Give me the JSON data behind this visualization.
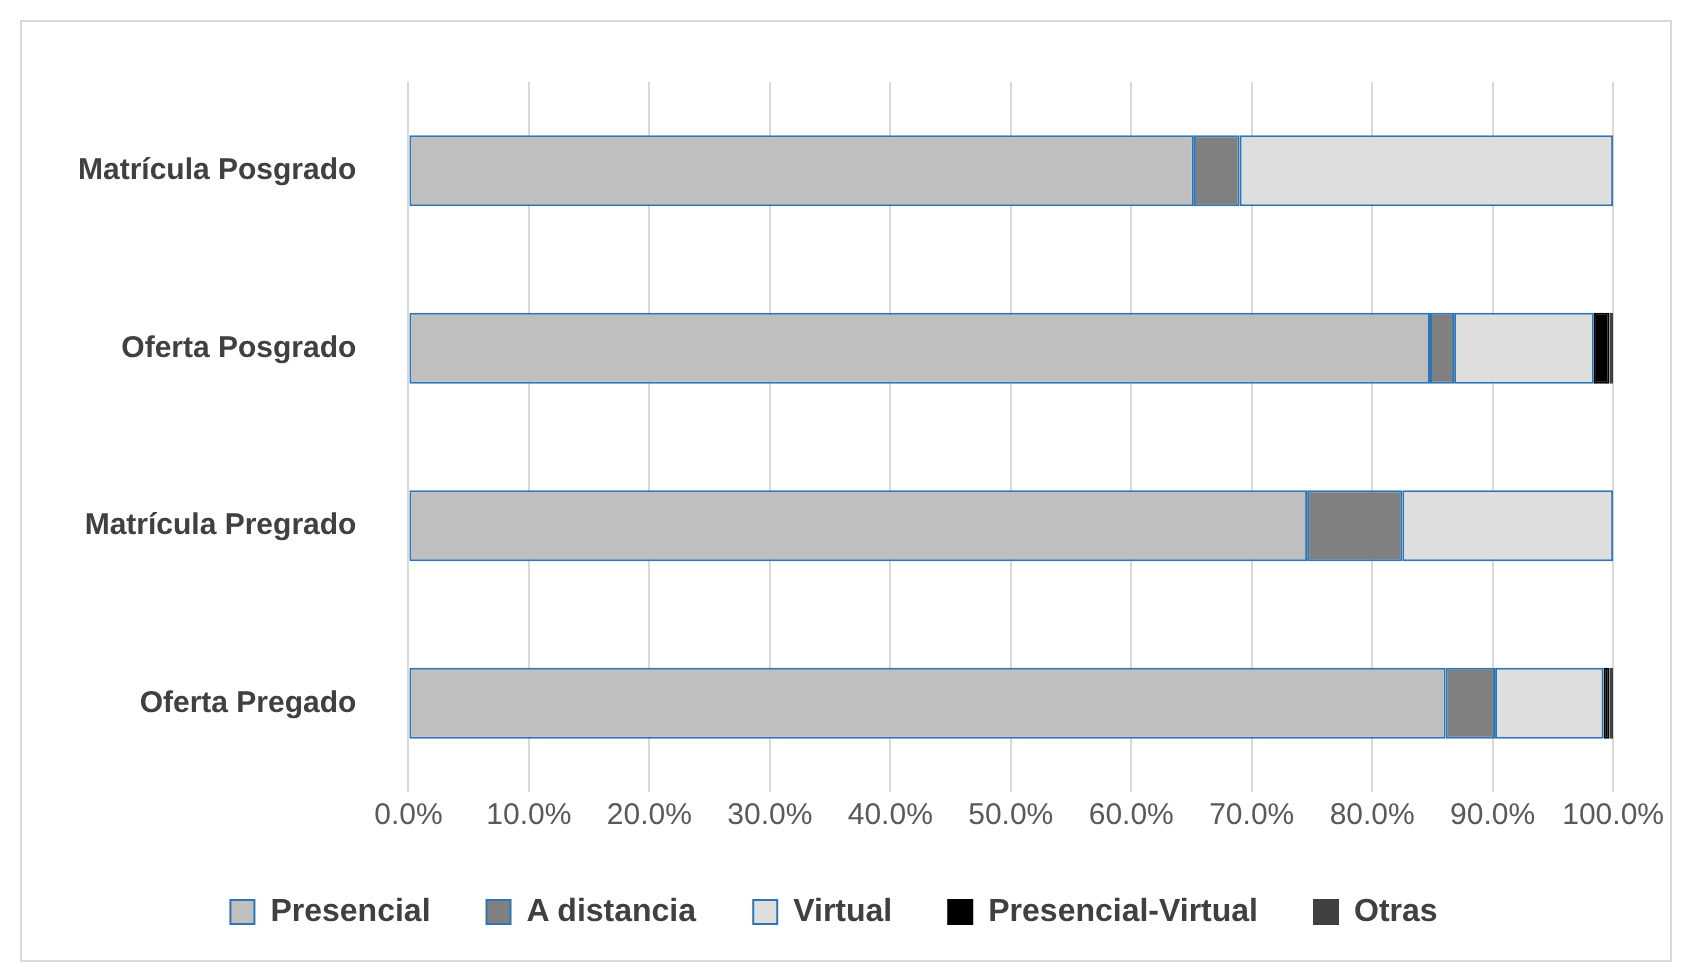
{
  "chart_data": {
    "type": "bar",
    "orientation": "horizontal",
    "stacked": true,
    "categories": [
      "Matrícula Posgrado",
      "Oferta Posgrado",
      "Matrícula Pregrado",
      "Oferta Pregado"
    ],
    "series": [
      {
        "name": "Presencial",
        "color": "#bfbfbf",
        "values": [
          65.2,
          84.8,
          74.6,
          86.1
        ]
      },
      {
        "name": "A distancia",
        "color": "#808080",
        "values": [
          3.8,
          2.0,
          7.9,
          4.1
        ]
      },
      {
        "name": "Virtual",
        "color": "#dedede",
        "values": [
          31.0,
          11.6,
          17.5,
          9.0
        ]
      },
      {
        "name": "Presencial-Virtual",
        "color": "#000000",
        "values": [
          0,
          1.3,
          0,
          0.5
        ]
      },
      {
        "name": "Otras",
        "color": "#404040",
        "values": [
          0,
          0.3,
          0,
          0.3
        ]
      }
    ],
    "xlim": [
      0,
      100
    ],
    "xticks": [
      {
        "value": 0,
        "label": "0.0%"
      },
      {
        "value": 10,
        "label": "10.0%"
      },
      {
        "value": 20,
        "label": "20.0%"
      },
      {
        "value": 30,
        "label": "30.0%"
      },
      {
        "value": 40,
        "label": "40.0%"
      },
      {
        "value": 50,
        "label": "50.0%"
      },
      {
        "value": 60,
        "label": "60.0%"
      },
      {
        "value": 70,
        "label": "70.0%"
      },
      {
        "value": 80,
        "label": "80.0%"
      },
      {
        "value": 90,
        "label": "90.0%"
      },
      {
        "value": 100,
        "label": "100.0%"
      }
    ],
    "grid": "x",
    "legend": "bottom"
  }
}
